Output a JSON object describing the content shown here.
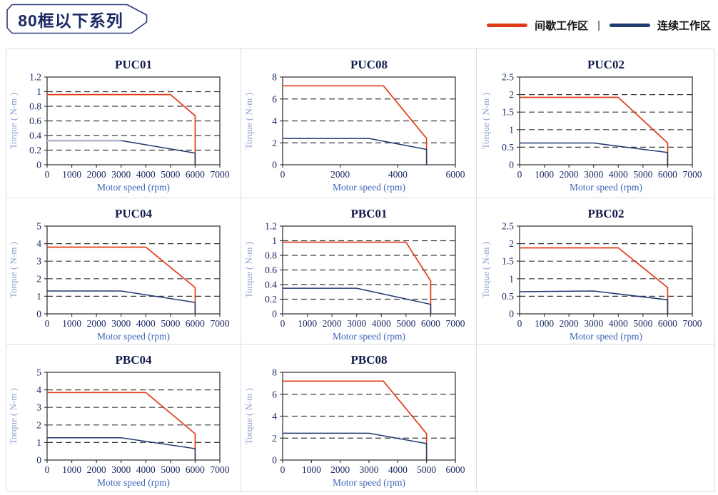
{
  "header": {
    "title": "80框以下系列",
    "legend": {
      "separator": "|",
      "items": [
        {
          "name": "intermittent-zone",
          "label": "间歇工作区",
          "color": "#e23c17"
        },
        {
          "name": "continuous-zone",
          "label": "连续工作区",
          "color": "#203a6e"
        }
      ]
    }
  },
  "colors": {
    "intermittent": "#e23c17",
    "continuous": "#203a6e",
    "continuous_light": "#b3bacf",
    "grid_line": "#3a3a3a",
    "cell_border": "#dcdcdc",
    "tick_text": "#1b2a63",
    "title_text": "#141b4d",
    "xlabel_text": "#3c64b8",
    "ylabel_text": "#8ca0d0"
  },
  "chart_data": [
    {
      "type": "line",
      "title": "PUC01",
      "xlabel": "Motor speed (rpm)",
      "ylabel": "Torque ( N-m )",
      "xlim": [
        0,
        7000
      ],
      "ylim": [
        0,
        1.2
      ],
      "xticks": [
        0,
        1000,
        2000,
        3000,
        4000,
        5000,
        6000,
        7000
      ],
      "yticks": [
        0,
        0.2,
        0.4,
        0.6,
        0.8,
        1,
        1.2
      ],
      "grid": "horizontal-dashed",
      "legend_position": "none",
      "series": [
        {
          "name": "间歇工作区",
          "color": "#e23c17",
          "points": [
            [
              0,
              0.96
            ],
            [
              5000,
              0.96
            ],
            [
              6000,
              0.67
            ],
            [
              6000,
              0
            ]
          ]
        },
        {
          "name": "连续工作区",
          "color": "#203a6e",
          "points": [
            [
              0,
              0.33
            ],
            [
              3000,
              0.33
            ],
            [
              6000,
              0.16
            ],
            [
              6000,
              0
            ]
          ],
          "segment_colors": [
            "#b3bacf",
            "#203a6e",
            "#203a6e"
          ],
          "segment_widths": [
            2.6,
            1.5,
            1.5
          ]
        }
      ]
    },
    {
      "type": "line",
      "title": "PUC08",
      "xlabel": "Motor speed (rpm)",
      "ylabel": "Torque ( N-m )",
      "xlim": [
        0,
        6000
      ],
      "ylim": [
        0,
        8
      ],
      "xticks": [
        0,
        2000,
        4000,
        6000
      ],
      "yticks": [
        0,
        2,
        4,
        6,
        8
      ],
      "grid": "horizontal-dashed",
      "legend_position": "none",
      "series": [
        {
          "name": "间歇工作区",
          "color": "#e23c17",
          "points": [
            [
              0,
              7.2
            ],
            [
              3500,
              7.2
            ],
            [
              5000,
              2.4
            ],
            [
              5000,
              0
            ]
          ]
        },
        {
          "name": "连续工作区",
          "color": "#203a6e",
          "points": [
            [
              0,
              2.4
            ],
            [
              3000,
              2.4
            ],
            [
              5000,
              1.4
            ],
            [
              5000,
              0
            ]
          ]
        }
      ]
    },
    {
      "type": "line",
      "title": "PUC02",
      "xlabel": "Motor speed (rpm)",
      "ylabel": "Torque ( N-m )",
      "xlim": [
        0,
        7000
      ],
      "ylim": [
        0,
        2.5
      ],
      "xticks": [
        0,
        1000,
        2000,
        3000,
        4000,
        5000,
        6000,
        7000
      ],
      "yticks": [
        0,
        0.5,
        1,
        1.5,
        2,
        2.5
      ],
      "grid": "horizontal-dashed",
      "legend_position": "none",
      "series": [
        {
          "name": "间歇工作区",
          "color": "#e23c17",
          "points": [
            [
              0,
              1.92
            ],
            [
              4000,
              1.92
            ],
            [
              6000,
              0.62
            ],
            [
              6000,
              0
            ]
          ]
        },
        {
          "name": "连续工作区",
          "color": "#203a6e",
          "points": [
            [
              0,
              0.62
            ],
            [
              3000,
              0.62
            ],
            [
              6000,
              0.35
            ],
            [
              6000,
              0
            ]
          ]
        }
      ]
    },
    {
      "type": "line",
      "title": "PUC04",
      "xlabel": "Motor speed (rpm)",
      "ylabel": "Torque ( N-m )",
      "xlim": [
        0,
        7000
      ],
      "ylim": [
        0,
        5
      ],
      "xticks": [
        0,
        1000,
        2000,
        3000,
        4000,
        5000,
        6000,
        7000
      ],
      "yticks": [
        0,
        1,
        2,
        3,
        4,
        5
      ],
      "grid": "horizontal-dashed",
      "legend_position": "none",
      "series": [
        {
          "name": "间歇工作区",
          "color": "#e23c17",
          "points": [
            [
              0,
              3.8
            ],
            [
              4000,
              3.8
            ],
            [
              6000,
              1.5
            ],
            [
              6000,
              0
            ]
          ]
        },
        {
          "name": "连续工作区",
          "color": "#203a6e",
          "points": [
            [
              0,
              1.3
            ],
            [
              3000,
              1.3
            ],
            [
              6000,
              0.65
            ],
            [
              6000,
              0
            ]
          ]
        }
      ]
    },
    {
      "type": "line",
      "title": "PBC01",
      "xlabel": "Motor speed (rpm)",
      "ylabel": "Torque ( N-m )",
      "xlim": [
        0,
        7000
      ],
      "ylim": [
        0,
        1.2
      ],
      "xticks": [
        0,
        1000,
        2000,
        3000,
        4000,
        5000,
        6000,
        7000
      ],
      "yticks": [
        0,
        0.2,
        0.4,
        0.6,
        0.8,
        1,
        1.2
      ],
      "grid": "horizontal-dashed",
      "legend_position": "none",
      "series": [
        {
          "name": "间歇工作区",
          "color": "#e23c17",
          "points": [
            [
              0,
              0.98
            ],
            [
              5000,
              0.98
            ],
            [
              6000,
              0.45
            ],
            [
              6000,
              0
            ]
          ]
        },
        {
          "name": "连续工作区",
          "color": "#203a6e",
          "points": [
            [
              0,
              0.35
            ],
            [
              3000,
              0.35
            ],
            [
              6000,
              0.13
            ],
            [
              6000,
              0
            ]
          ]
        }
      ]
    },
    {
      "type": "line",
      "title": "PBC02",
      "xlabel": "Motor speed (rpm)",
      "ylabel": "Torque ( N-m )",
      "xlim": [
        0,
        7000
      ],
      "ylim": [
        0,
        2.5
      ],
      "xticks": [
        0,
        1000,
        2000,
        3000,
        4000,
        5000,
        6000,
        7000
      ],
      "yticks": [
        0,
        0.5,
        1,
        1.5,
        2,
        2.5
      ],
      "grid": "horizontal-dashed",
      "legend_position": "none",
      "series": [
        {
          "name": "间歇工作区",
          "color": "#e23c17",
          "points": [
            [
              0,
              1.88
            ],
            [
              4000,
              1.88
            ],
            [
              6000,
              0.75
            ],
            [
              6000,
              0
            ]
          ]
        },
        {
          "name": "连续工作区",
          "color": "#203a6e",
          "points": [
            [
              0,
              0.63
            ],
            [
              3000,
              0.65
            ],
            [
              6000,
              0.4
            ],
            [
              6000,
              0
            ]
          ]
        }
      ]
    },
    {
      "type": "line",
      "title": "PBC04",
      "xlabel": "Motor speed (rpm)",
      "ylabel": "Torque ( N-m )",
      "xlim": [
        0,
        7000
      ],
      "ylim": [
        0,
        5
      ],
      "xticks": [
        0,
        1000,
        2000,
        3000,
        4000,
        5000,
        6000,
        7000
      ],
      "yticks": [
        0,
        1,
        2,
        3,
        4,
        5
      ],
      "grid": "horizontal-dashed",
      "legend_position": "none",
      "series": [
        {
          "name": "间歇工作区",
          "color": "#e23c17",
          "points": [
            [
              0,
              3.85
            ],
            [
              4000,
              3.85
            ],
            [
              6000,
              1.5
            ],
            [
              6000,
              0
            ]
          ]
        },
        {
          "name": "连续工作区",
          "color": "#203a6e",
          "points": [
            [
              0,
              1.27
            ],
            [
              3000,
              1.27
            ],
            [
              6000,
              0.65
            ],
            [
              6000,
              0
            ]
          ]
        }
      ]
    },
    {
      "type": "line",
      "title": "PBC08",
      "xlabel": "Motor speed (rpm)",
      "ylabel": "Torque ( N-m )",
      "xlim": [
        0,
        6000
      ],
      "ylim": [
        0,
        8
      ],
      "xticks": [
        0,
        1000,
        2000,
        3000,
        4000,
        5000,
        6000
      ],
      "yticks": [
        0,
        2,
        4,
        6,
        8
      ],
      "grid": "horizontal-dashed",
      "legend_position": "none",
      "series": [
        {
          "name": "间歇工作区",
          "color": "#e23c17",
          "points": [
            [
              0,
              7.2
            ],
            [
              3500,
              7.2
            ],
            [
              5000,
              2.4
            ],
            [
              5000,
              0
            ]
          ]
        },
        {
          "name": "连续工作区",
          "color": "#203a6e",
          "points": [
            [
              0,
              2.45
            ],
            [
              3000,
              2.45
            ],
            [
              5000,
              1.5
            ],
            [
              5000,
              0
            ]
          ]
        }
      ]
    }
  ]
}
